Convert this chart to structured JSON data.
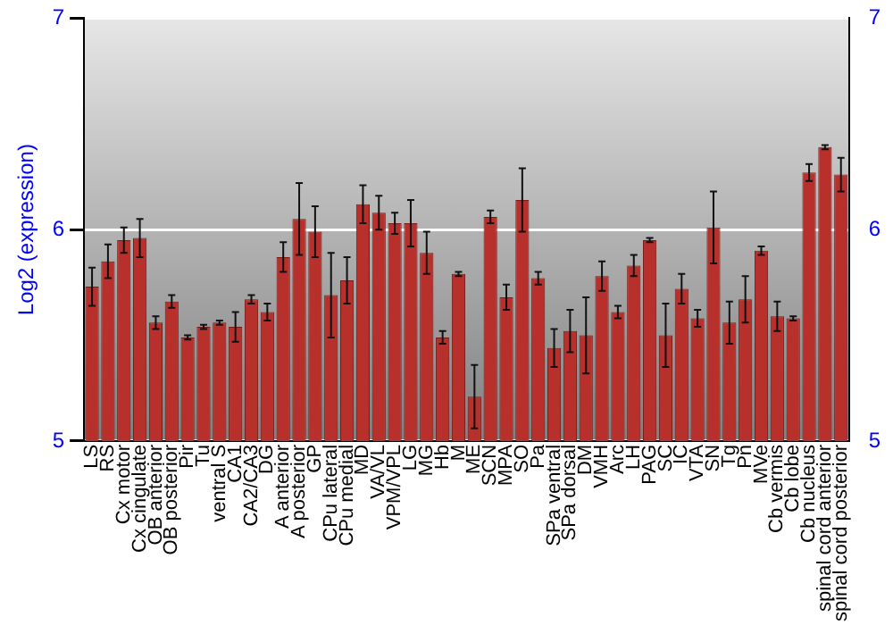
{
  "chart_data": {
    "type": "bar",
    "ylabel": "Log2 (expression)",
    "categories": [
      "LS",
      "RS",
      "Cx motor",
      "Cx cingulate",
      "OB anterior",
      "OB posterior",
      "Pir",
      "Tu",
      "ventral S",
      "CA1",
      "CA2/CA3",
      "DG",
      "A anterior",
      "A posterior",
      "GP",
      "CPu lateral",
      "CPu medial",
      "MD",
      "VA/VL",
      "VPM/VPL",
      "LG",
      "MG",
      "Hb",
      "M",
      "ME",
      "SCN",
      "MPA",
      "SO",
      "Pa",
      "SPa ventral",
      "SPa dorsal",
      "DM",
      "VMH",
      "Arc",
      "LH",
      "PAG",
      "SC",
      "IC",
      "VTA",
      "SN",
      "Tg",
      "Pn",
      "MVe",
      "Cb vermis",
      "Cb lobe",
      "Cb nucleus",
      "spinal cord anterior",
      "spinal cord posterior"
    ],
    "values": [
      5.73,
      5.85,
      5.95,
      5.96,
      5.56,
      5.66,
      5.49,
      5.54,
      5.56,
      5.54,
      5.67,
      5.61,
      5.87,
      6.05,
      5.99,
      5.69,
      5.76,
      6.12,
      6.08,
      6.03,
      6.03,
      5.89,
      5.49,
      5.79,
      5.21,
      6.06,
      5.68,
      6.14,
      5.77,
      5.44,
      5.52,
      5.5,
      5.78,
      5.61,
      5.83,
      5.95,
      5.5,
      5.72,
      5.58,
      6.01,
      5.56,
      5.67,
      5.9,
      5.59,
      5.58,
      6.27,
      6.39,
      6.26
    ],
    "errors": [
      0.09,
      0.08,
      0.06,
      0.09,
      0.03,
      0.03,
      0.01,
      0.01,
      0.01,
      0.07,
      0.02,
      0.04,
      0.07,
      0.17,
      0.12,
      0.2,
      0.11,
      0.09,
      0.08,
      0.05,
      0.11,
      0.1,
      0.03,
      0.01,
      0.15,
      0.03,
      0.06,
      0.15,
      0.03,
      0.09,
      0.1,
      0.18,
      0.07,
      0.03,
      0.05,
      0.01,
      0.15,
      0.07,
      0.04,
      0.17,
      0.1,
      0.11,
      0.02,
      0.07,
      0.01,
      0.04,
      0.01,
      0.08
    ],
    "color": "#b8302c",
    "ylim": [
      5,
      7
    ],
    "yticks": [
      5,
      6,
      7
    ],
    "y2lim": [
      5,
      7
    ],
    "y2ticks": [
      5,
      6,
      7
    ],
    "grid": "y",
    "legend": false
  }
}
